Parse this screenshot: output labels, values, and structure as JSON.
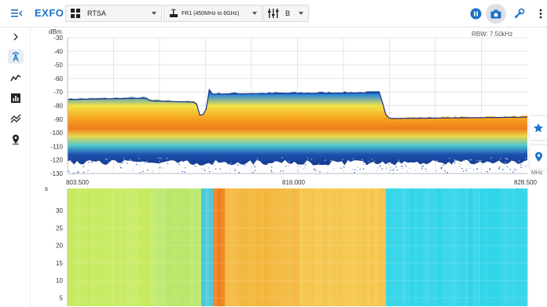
{
  "app": {
    "logo": "EXFO"
  },
  "toolbar": {
    "mode_select": "RTSA",
    "band_select": "FR1 (450MHz to 6GHz)",
    "channel_select": "B"
  },
  "spectrum": {
    "unit": "dBm",
    "rbw": "RBW: 7.50kHz",
    "y_ticks": [
      "-30",
      "-40",
      "-50",
      "-60",
      "-70",
      "-80",
      "-90",
      "-100",
      "-110",
      "-120",
      "-130"
    ],
    "x_start": "803.500",
    "x_center": "816.000",
    "x_end": "828.500",
    "x_unit": "MHz"
  },
  "spectrogram": {
    "unit": "s",
    "y_ticks": [
      "30",
      "25",
      "20",
      "15",
      "10",
      "5"
    ]
  },
  "colors": {
    "accent": "#1a73c8",
    "background": "#ffffff",
    "grid": "#e3e6ea"
  },
  "icons": {
    "menu": "menu-collapse-icon",
    "expand": "chevron-right-icon",
    "antenna": "antenna-icon",
    "trend": "trend-line-icon",
    "bar": "bar-chart-icon",
    "multi": "multi-trace-icon",
    "location": "location-pin-icon",
    "pause": "pause-icon",
    "camera": "camera-icon",
    "settings": "settings-wrench-icon",
    "more": "more-vertical-icon",
    "favorite": "star-icon",
    "marker": "marker-pin-icon"
  }
}
